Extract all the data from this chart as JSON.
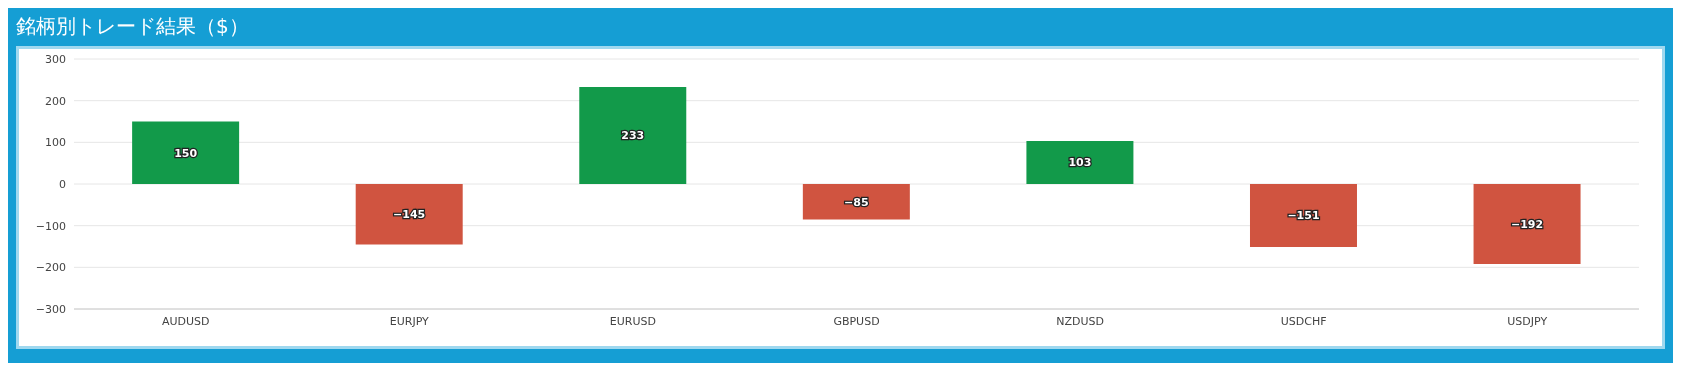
{
  "chart_data": {
    "type": "bar",
    "title": "銘柄別トレード結果（$）",
    "categories": [
      "AUDUSD",
      "EURJPY",
      "EURUSD",
      "GBPUSD",
      "NZDUSD",
      "USDCHF",
      "USDJPY"
    ],
    "values": [
      150,
      -145,
      233,
      -85,
      103,
      -151,
      -192
    ],
    "colors": [
      "#129a4a",
      "#d05440",
      "#129a4a",
      "#d05440",
      "#129a4a",
      "#d05440",
      "#d05440"
    ],
    "ylim": [
      -300,
      300
    ],
    "yticks": [
      -300,
      -200,
      -100,
      0,
      100,
      200,
      300
    ],
    "grid": "y",
    "data_labels": true
  }
}
